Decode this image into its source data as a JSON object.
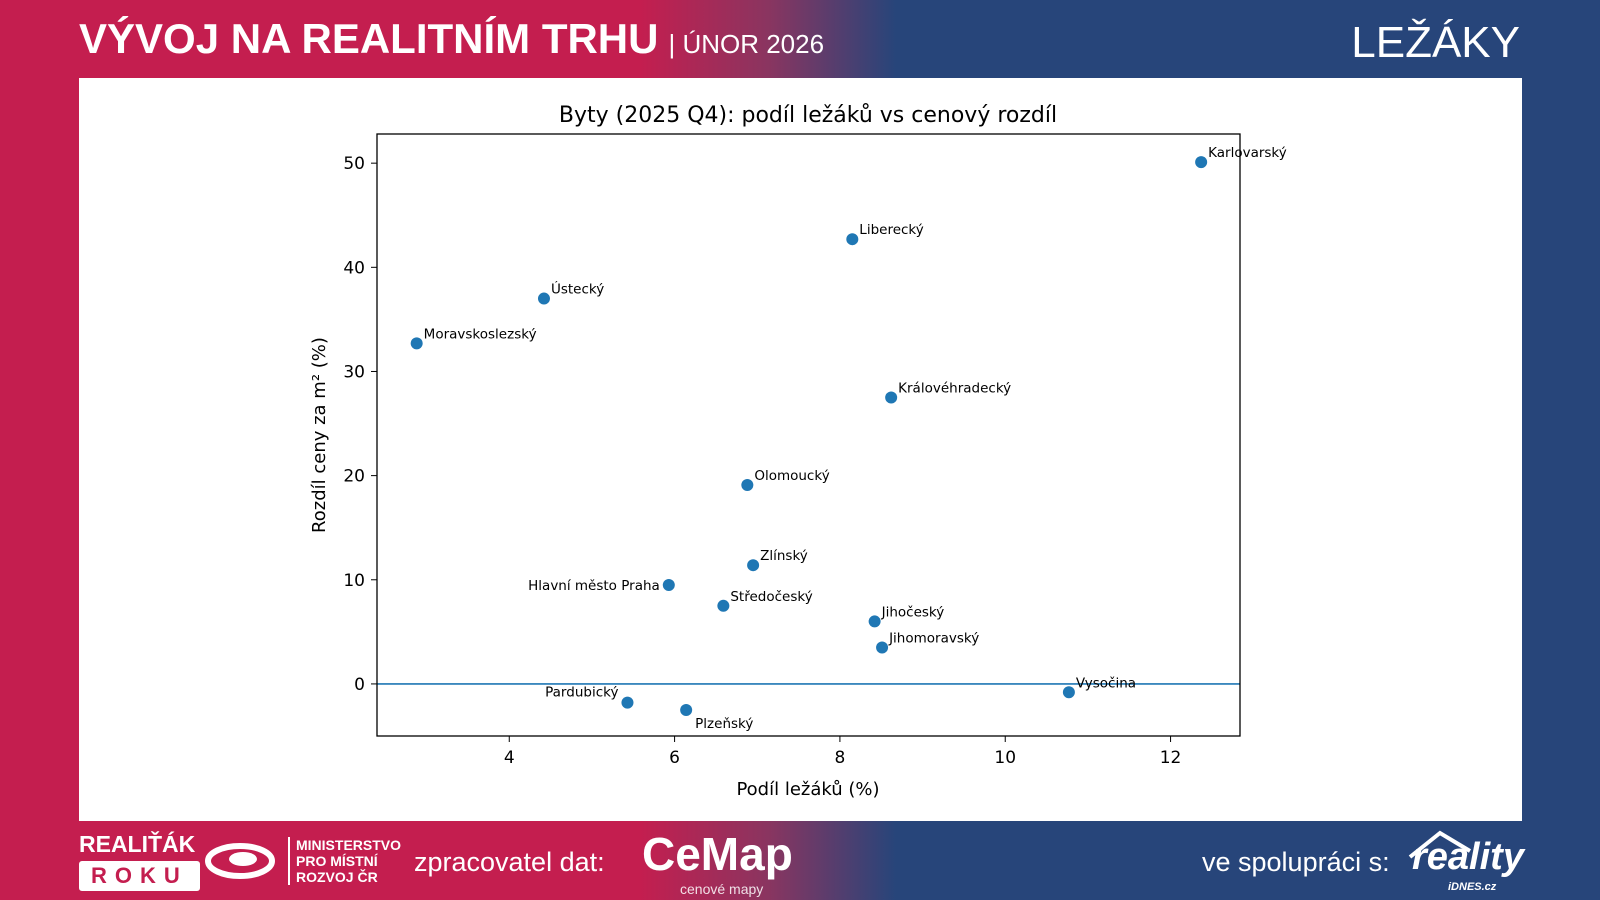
{
  "header": {
    "title": "VÝVOJ NA REALITNÍM TRHU",
    "subtitle": "| ÚNOR 2026",
    "section": "LEŽÁKY"
  },
  "footer": {
    "award_line1": "REALIŤÁK",
    "award_line2": "ROKU",
    "ministry": "MINISTERSTVO PRO MÍSTNÍ ROZVOJ ČR",
    "processor_label": "zpracovatel dat:",
    "processor_logo": "CeMap",
    "processor_logo_sub": "cenové mapy",
    "partner_label": "ve spolupráci s:",
    "partner_logo": "reality",
    "partner_logo_sub": "iDNES.cz"
  },
  "colors": {
    "red": "#c41e4f",
    "blue": "#27457a",
    "point": "#1f77b4"
  },
  "chart_data": {
    "type": "scatter",
    "title": "Byty (2025 Q4): podíl ležáků vs cenový rozdíl",
    "xlabel": "Podíl ležáků (%)",
    "ylabel": "Rozdíl ceny za m² (%)",
    "xlim": [
      2.4,
      12.84
    ],
    "ylim": [
      -5,
      52.8
    ],
    "xticks": [
      4,
      6,
      8,
      10,
      12
    ],
    "yticks": [
      0,
      10,
      20,
      30,
      40,
      50
    ],
    "hline": 0,
    "grid": false,
    "points": [
      {
        "label": "Karlovarský",
        "x": 12.37,
        "y": 50.1
      },
      {
        "label": "Liberecký",
        "x": 8.15,
        "y": 42.7
      },
      {
        "label": "Ústecký",
        "x": 4.42,
        "y": 37.0
      },
      {
        "label": "Moravskoslezský",
        "x": 2.88,
        "y": 32.7
      },
      {
        "label": "Královéhradecký",
        "x": 8.62,
        "y": 27.5
      },
      {
        "label": "Olomoucký",
        "x": 6.88,
        "y": 19.1
      },
      {
        "label": "Zlínský",
        "x": 6.95,
        "y": 11.4
      },
      {
        "label": "Hlavní město Praha",
        "x": 5.93,
        "y": 9.5
      },
      {
        "label": "Středočeský",
        "x": 6.59,
        "y": 7.5
      },
      {
        "label": "Jihočeský",
        "x": 8.42,
        "y": 6.0
      },
      {
        "label": "Jihomoravský",
        "x": 8.51,
        "y": 3.5
      },
      {
        "label": "Vysočina",
        "x": 10.77,
        "y": -0.8
      },
      {
        "label": "Pardubický",
        "x": 5.43,
        "y": -1.8
      },
      {
        "label": "Plzeňský",
        "x": 6.14,
        "y": -2.5
      }
    ]
  }
}
